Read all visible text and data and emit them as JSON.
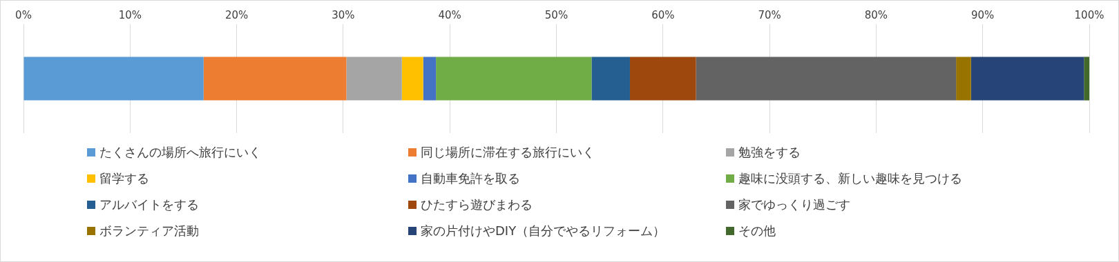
{
  "chart_data": {
    "type": "bar",
    "orientation": "horizontal",
    "stacked": true,
    "categories": [
      null
    ],
    "series": [
      {
        "name": "たくさんの場所へ旅行にいく",
        "color": "#5b9bd5",
        "values": [
          16.9
        ]
      },
      {
        "name": "同じ場所に滞在する旅行にいく",
        "color": "#ed7d31",
        "values": [
          13.4
        ]
      },
      {
        "name": "勉強をする",
        "color": "#a5a5a5",
        "values": [
          5.2
        ]
      },
      {
        "name": "留学する",
        "color": "#ffc000",
        "values": [
          2.0
        ]
      },
      {
        "name": "自動車免許を取る",
        "color": "#4472c4",
        "values": [
          1.2
        ]
      },
      {
        "name": "趣味に没頭する、新しい趣味を見つける",
        "color": "#70ad47",
        "values": [
          14.6
        ]
      },
      {
        "name": "アルバイトをする",
        "color": "#255e91",
        "values": [
          3.6
        ]
      },
      {
        "name": "ひたすら遊びまわる",
        "color": "#9e480e",
        "values": [
          6.2
        ]
      },
      {
        "name": "家でゆっくり過ごす",
        "color": "#636363",
        "values": [
          24.4
        ]
      },
      {
        "name": "ボランティア活動",
        "color": "#997300",
        "values": [
          1.4
        ]
      },
      {
        "name": "家の片付けやDIY（自分でやるリフォーム）",
        "color": "#264478",
        "values": [
          10.6
        ]
      },
      {
        "name": "その他",
        "color": "#43682b",
        "values": [
          0.5
        ]
      }
    ],
    "xlim": [
      0,
      100
    ],
    "xticks": [
      {
        "value": 0,
        "label": "0%"
      },
      {
        "value": 10,
        "label": "10%"
      },
      {
        "value": 20,
        "label": "20%"
      },
      {
        "value": 30,
        "label": "30%"
      },
      {
        "value": 40,
        "label": "40%"
      },
      {
        "value": 50,
        "label": "50%"
      },
      {
        "value": 60,
        "label": "60%"
      },
      {
        "value": 70,
        "label": "70%"
      },
      {
        "value": 80,
        "label": "80%"
      },
      {
        "value": 90,
        "label": "90%"
      },
      {
        "value": 100,
        "label": "100%"
      }
    ],
    "grid": "x",
    "legend": "bottom"
  }
}
